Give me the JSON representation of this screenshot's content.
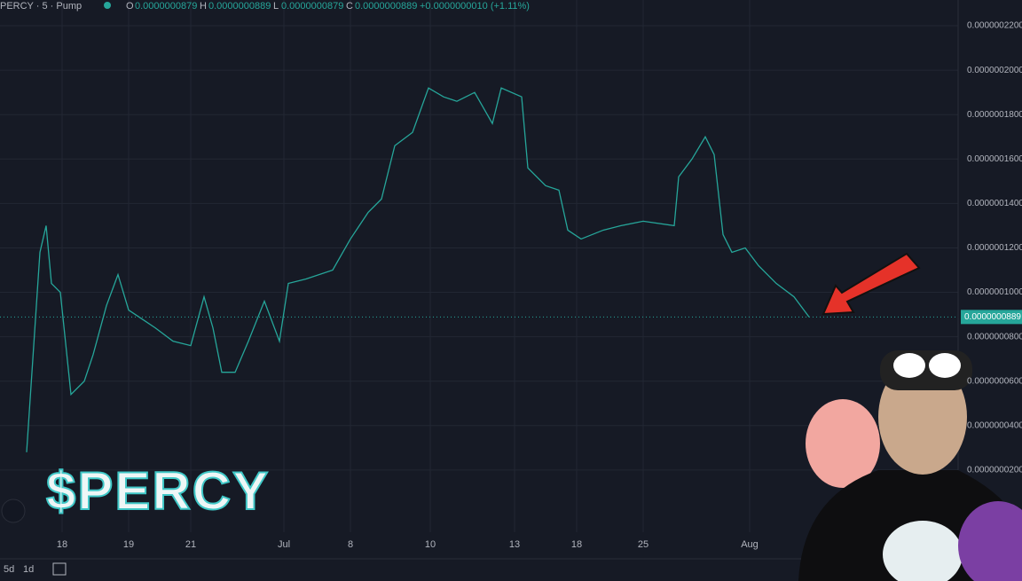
{
  "header": {
    "symbol": "PERCY · 5 · Pump",
    "o_label": "O",
    "open": "0.0000000879",
    "h_label": "H",
    "high": "0.0000000889",
    "l_label": "L",
    "low": "0.0000000879",
    "c_label": "C",
    "close": "0.0000000889",
    "change": "+0.0000000010 (+1.11%)"
  },
  "chart_data": {
    "type": "line",
    "x": [
      6,
      7.6,
      9,
      10.4,
      11.6,
      13.6,
      16,
      19,
      21,
      24,
      26.6,
      29,
      32,
      35,
      39,
      43,
      46,
      48,
      50,
      53,
      56,
      59.6,
      63,
      65,
      69,
      75,
      79,
      83,
      86,
      89,
      93,
      96.6,
      100,
      103,
      107,
      111,
      113,
      117.6,
      119,
      123,
      126,
      128,
      131,
      136,
      140,
      145,
      152,
      153,
      156,
      159,
      161,
      163,
      165,
      168,
      171,
      175,
      179,
      182.4
    ],
    "series": [
      {
        "name": "PERCY",
        "color": "#26a69a",
        "values": [
          2.8e-08,
          7.6e-08,
          1.18e-07,
          1.3e-07,
          1.04e-07,
          1e-07,
          5.4e-08,
          6e-08,
          7.2e-08,
          9.4e-08,
          1.08e-07,
          9.2e-08,
          8.8e-08,
          8.4e-08,
          7.8e-08,
          7.6e-08,
          9.8e-08,
          8.4e-08,
          6.4e-08,
          6.4e-08,
          7.8e-08,
          9.6e-08,
          7.8e-08,
          1.04e-07,
          1.06e-07,
          1.1e-07,
          1.24e-07,
          1.36e-07,
          1.42e-07,
          1.66e-07,
          1.72e-07,
          1.92e-07,
          1.88e-07,
          1.86e-07,
          1.9e-07,
          1.76e-07,
          1.92e-07,
          1.88e-07,
          1.56e-07,
          1.48e-07,
          1.46e-07,
          1.28e-07,
          1.24e-07,
          1.28e-07,
          1.3e-07,
          1.32e-07,
          1.3e-07,
          1.52e-07,
          1.6e-07,
          1.7e-07,
          1.62e-07,
          1.26e-07,
          1.18e-07,
          1.2e-07,
          1.12e-07,
          1.04e-07,
          9.8e-08,
          8.89e-08
        ]
      }
    ],
    "xlim": [
      0,
      216
    ],
    "ylim": [
      -8e-09,
      2.316e-07
    ],
    "xticks": [
      {
        "value": 14,
        "label": "18"
      },
      {
        "value": 29,
        "label": "19"
      },
      {
        "value": 43,
        "label": "21"
      },
      {
        "value": 64,
        "label": "Jul"
      },
      {
        "value": 79,
        "label": "8"
      },
      {
        "value": 97,
        "label": "10"
      },
      {
        "value": 116,
        "label": "13"
      },
      {
        "value": 130,
        "label": "18"
      },
      {
        "value": 145,
        "label": "25"
      },
      {
        "value": 169,
        "label": "Aug"
      }
    ],
    "yticks": [
      {
        "value": 2e-08,
        "label": "0.0000000200"
      },
      {
        "value": 4e-08,
        "label": "0.0000000400"
      },
      {
        "value": 6e-08,
        "label": "0.0000000600"
      },
      {
        "value": 8e-08,
        "label": "0.0000000800"
      },
      {
        "value": 1e-07,
        "label": "0.0000001000"
      },
      {
        "value": 1.2e-07,
        "label": "0.0000001200"
      },
      {
        "value": 1.4e-07,
        "label": "0.0000001400"
      },
      {
        "value": 1.6e-07,
        "label": "0.0000001600"
      },
      {
        "value": 1.8e-07,
        "label": "0.0000001800"
      },
      {
        "value": 2e-07,
        "label": "0.0000002000"
      },
      {
        "value": 2.2e-07,
        "label": "0.0000002200"
      }
    ],
    "last_price": {
      "value": 8.89e-08,
      "label": "0.0000000889"
    },
    "grid": true
  },
  "toolbar": {
    "range_5d": "5d",
    "range_1d": "1d"
  },
  "logo": "$PERCY"
}
